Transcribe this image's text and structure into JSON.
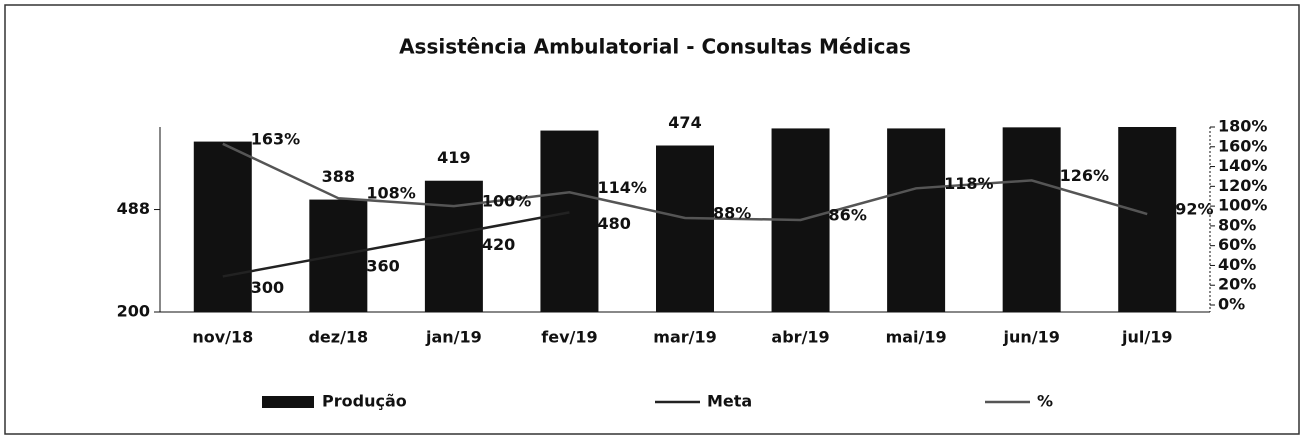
{
  "chart_data": {
    "type": "bar",
    "title": "Assistência Ambulatorial - Consultas Médicas",
    "categories": [
      "nov/18",
      "dez/18",
      "jan/19",
      "fev/19",
      "mar/19",
      "abr/19",
      "mai/19",
      "jun/19",
      "jul/19"
    ],
    "ylim": [
      200,
      720
    ],
    "yticks": [
      200,
      488
    ],
    "y2lim": [
      0,
      180
    ],
    "y2ticks": [
      {
        "value": 0,
        "label": "0%"
      },
      {
        "value": 20,
        "label": "20%"
      },
      {
        "value": 40,
        "label": "40%"
      },
      {
        "value": 60,
        "label": "60%"
      },
      {
        "value": 80,
        "label": "80%"
      },
      {
        "value": 100,
        "label": "100%"
      },
      {
        "value": 120,
        "label": "120%"
      },
      {
        "value": 140,
        "label": "140%"
      },
      {
        "value": 160,
        "label": "160%"
      },
      {
        "value": 180,
        "label": "180%"
      }
    ],
    "series": [
      {
        "name": "Produção",
        "type": "bar",
        "color": "#111111",
        "values": [
          679,
          516,
          569,
          710,
          668,
          716,
          716,
          719,
          720
        ]
      },
      {
        "name": "Meta",
        "type": "line",
        "color": "#222222",
        "values": [
          300,
          360,
          420,
          480,
          null,
          null,
          null,
          null,
          null
        ]
      },
      {
        "name": "%",
        "type": "line",
        "axis": "y2",
        "color": "#555555",
        "values": [
          163,
          108,
          100,
          114,
          88,
          86,
          118,
          126,
          92
        ],
        "value_labels": [
          "163%",
          "108%",
          "100%",
          "114%",
          "88%",
          "86%",
          "118%",
          "126%",
          "92%"
        ]
      }
    ],
    "annotations": [
      {
        "text": "388",
        "category": "dez/18"
      },
      {
        "text": "419",
        "category": "jan/19"
      },
      {
        "text": "474",
        "category": "mar/19"
      }
    ]
  }
}
